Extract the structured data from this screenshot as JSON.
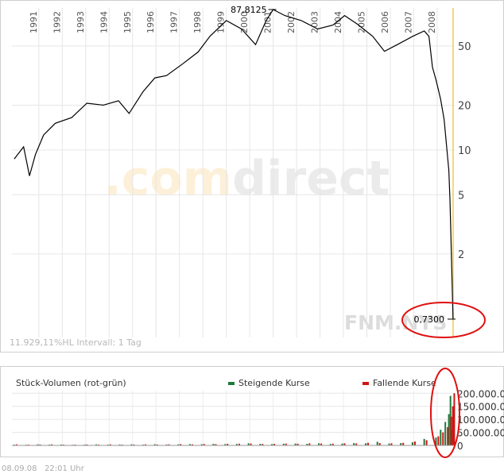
{
  "chart_data": [
    {
      "type": "line",
      "watermark": [
        ".com",
        "direct"
      ],
      "symbol": "FNM.NYS",
      "info": "11.929,11%HL Intervall: 1 Tag",
      "log_scale": true,
      "grid": true,
      "xlim": [
        1989.85,
        2008.75
      ],
      "xticks": [
        1991,
        1992,
        1993,
        1994,
        1995,
        1996,
        1997,
        1998,
        1999,
        2000,
        2001,
        2002,
        2003,
        2004,
        2005,
        2006,
        2007,
        2008
      ],
      "ylim": [
        0.55,
        90
      ],
      "yticks": [
        2,
        5,
        10,
        20,
        50
      ],
      "max": {
        "x": 2001.0,
        "value": 87.8125,
        "label": "87,8125"
      },
      "last": {
        "x": 2008.68,
        "value": 0.73,
        "label": "0,7300"
      },
      "series": [
        {
          "color": "#000000",
          "x": [
            1989.95,
            1990.35,
            1990.6,
            1990.85,
            1991.2,
            1991.7,
            1992.4,
            1993.05,
            1993.75,
            1994.4,
            1994.85,
            1995.45,
            1995.95,
            1996.45,
            1997.15,
            1997.8,
            1998.3,
            1999.0,
            1999.65,
            2000.25,
            2000.7,
            2001.0,
            2001.5,
            2002.2,
            2002.9,
            2003.55,
            2004.05,
            2004.6,
            2005.25,
            2005.75,
            2006.3,
            2006.95,
            2007.45,
            2007.65,
            2007.8,
            2007.95,
            2008.15,
            2008.3,
            2008.5,
            2008.55,
            2008.68
          ],
          "values": [
            8.7,
            10.5,
            6.7,
            9.3,
            12.6,
            15.1,
            16.5,
            20.6,
            20,
            21.4,
            17.6,
            24.7,
            30.5,
            31.6,
            38,
            45.6,
            58,
            74,
            65,
            51,
            74,
            87.8125,
            80,
            74,
            65,
            69,
            80,
            70,
            58,
            46,
            51,
            58,
            63,
            58,
            36,
            29.7,
            21.9,
            16,
            7.3,
            4.5,
            0.73
          ]
        }
      ]
    },
    {
      "type": "bar",
      "title": "Stück-Volumen (rot-grün)",
      "xlim": [
        1989.85,
        2008.75
      ],
      "xticks": [
        1991,
        1992,
        1993,
        1994,
        1995,
        1996,
        1997,
        1998,
        1999,
        2000,
        2001,
        2002,
        2003,
        2004,
        2005,
        2006,
        2007,
        2008
      ],
      "ylim": [
        0,
        210000000
      ],
      "yticks": [
        0,
        {
          "value": 50000000,
          "label": "50.000.00"
        },
        {
          "value": 100000000,
          "label": "100.000.0"
        },
        {
          "value": 150000000,
          "label": "150.000.0"
        },
        {
          "value": 200000000,
          "label": "200.000.0"
        }
      ],
      "grid": true,
      "x": [
        1990.0,
        1990.5,
        1991.0,
        1991.5,
        1992.0,
        1992.5,
        1993.0,
        1993.5,
        1994.0,
        1994.5,
        1995.0,
        1995.5,
        1996.0,
        1996.5,
        1997.0,
        1997.5,
        1998.0,
        1998.5,
        1999.0,
        1999.5,
        2000.0,
        2000.5,
        2001.0,
        2001.5,
        2002.0,
        2002.5,
        2003.0,
        2003.5,
        2004.0,
        2004.5,
        2005.0,
        2005.5,
        2006.0,
        2006.5,
        2007.0,
        2007.5,
        2008.0,
        2008.2,
        2008.4,
        2008.55,
        2008.62,
        2008.68
      ],
      "series": [
        {
          "name": "Steigende Kurse",
          "color": "#1e7b3c",
          "values": [
            3000000,
            2500000,
            4000000,
            3000000,
            3500000,
            2500000,
            3000000,
            4000000,
            3000000,
            3500000,
            4000000,
            3000000,
            4500000,
            3500000,
            4000000,
            5000000,
            4500000,
            6000000,
            5000000,
            5500000,
            8000000,
            6000000,
            5000000,
            6500000,
            7000000,
            6000000,
            8000000,
            5500000,
            7000000,
            9000000,
            8000000,
            14000000,
            7000000,
            9000000,
            12000000,
            25000000,
            30000000,
            60000000,
            90000000,
            120000000,
            190000000,
            60000000
          ]
        },
        {
          "name": "Fallende Kurse",
          "color": "#d01515",
          "values": [
            4000000,
            3000000,
            3500000,
            4000000,
            3000000,
            3000000,
            3500000,
            3000000,
            4000000,
            3000000,
            3500000,
            4000000,
            3500000,
            4000000,
            5000000,
            4000000,
            5500000,
            5000000,
            6000000,
            6500000,
            7000000,
            5500000,
            6000000,
            7000000,
            6500000,
            8000000,
            7000000,
            6500000,
            8000000,
            7500000,
            10000000,
            9000000,
            8000000,
            10000000,
            15000000,
            20000000,
            35000000,
            50000000,
            70000000,
            110000000,
            150000000,
            200000000
          ]
        }
      ]
    }
  ],
  "footer": "08.09.08   22:01 Uhr"
}
